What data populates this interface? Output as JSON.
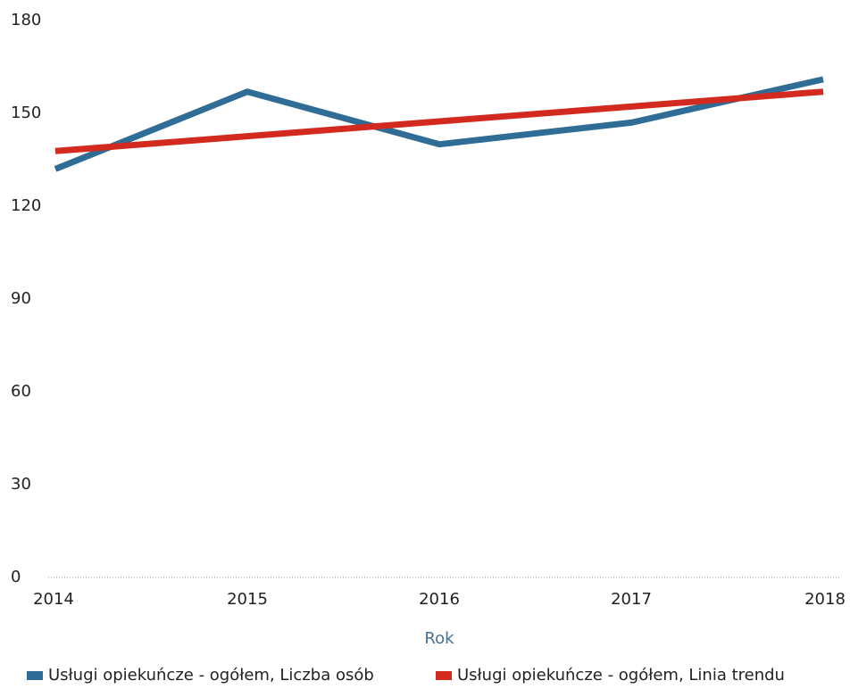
{
  "chart_data": {
    "type": "line",
    "categories": [
      "2014",
      "2015",
      "2016",
      "2017",
      "2018"
    ],
    "series": [
      {
        "name": "Usługi opiekuńcze - ogółem, Liczba osób",
        "color": "#2f6d96",
        "values": [
          132,
          157,
          140,
          147,
          161
        ]
      },
      {
        "name": "Usługi opiekuńcze - ogółem, Linia trendu",
        "color": "#d32a20",
        "values": [
          137.8,
          142.6,
          147.4,
          152.2,
          157
        ]
      }
    ],
    "x_label": "Rok",
    "ylim": [
      0,
      180
    ],
    "yticks": [
      0,
      30,
      60,
      90,
      120,
      150,
      180
    ],
    "legend": "bottom"
  }
}
